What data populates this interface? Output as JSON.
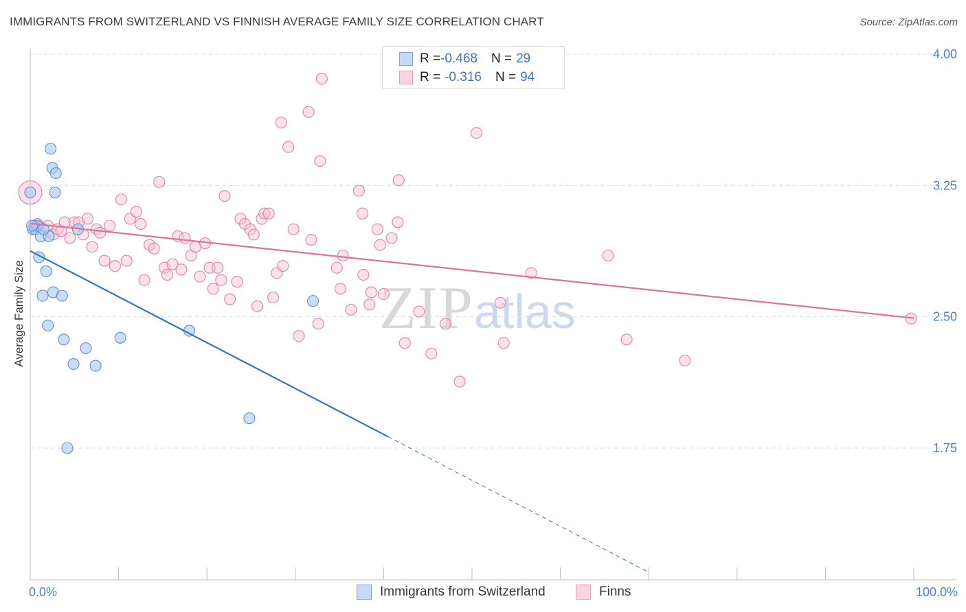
{
  "header": {
    "title": "IMMIGRANTS FROM SWITZERLAND VS FINNISH AVERAGE FAMILY SIZE CORRELATION CHART",
    "source": "Source: ZipAtlas.com"
  },
  "watermark": {
    "zip": "ZIP",
    "atlas": "atlas"
  },
  "legend": {
    "rows": [
      {
        "r_label": "R = ",
        "r_value": "-0.468",
        "n_label": "N = ",
        "n_value": "29"
      },
      {
        "r_label": "R = ",
        "r_value": "-0.316",
        "n_label": "N = ",
        "n_value": "94"
      }
    ]
  },
  "colors": {
    "blue_fill": "#aac8f2",
    "blue_stroke": "#5b8fd8",
    "blue_line": "#2f74d0",
    "pink_fill": "#f7c2d3",
    "pink_stroke": "#ea7fa4",
    "pink_line": "#e2709b",
    "axis_text": "#4a7fd0",
    "grid": "#dddddd"
  },
  "chart_data": {
    "type": "scatter",
    "title": "IMMIGRANTS FROM SWITZERLAND VS FINNISH AVERAGE FAMILY SIZE CORRELATION CHART",
    "xlabel": "",
    "ylabel": "Average Family Size",
    "xlim": [
      0,
      100
    ],
    "ylim": [
      1.0,
      4.05
    ],
    "x_tick_labels": [
      {
        "value": 0,
        "label": "0.0%"
      },
      {
        "value": 100,
        "label": "100.0%"
      }
    ],
    "y_ticks": [
      {
        "value": 4.0,
        "label": "4.00"
      },
      {
        "value": 3.25,
        "label": "3.25"
      },
      {
        "value": 2.5,
        "label": "2.50"
      },
      {
        "value": 1.75,
        "label": "1.75"
      }
    ],
    "grid": "horizontal dashed",
    "legend_position": "top-center",
    "series": [
      {
        "name": "Immigrants from Switzerland",
        "color": "#5b8fd8",
        "points": [
          [
            0.0,
            3.21
          ],
          [
            0.3,
            3.0
          ],
          [
            0.5,
            3.02
          ],
          [
            0.6,
            3.0
          ],
          [
            0.8,
            3.02
          ],
          [
            1.2,
            2.96
          ],
          [
            1.0,
            2.84
          ],
          [
            1.4,
            2.62
          ],
          [
            1.8,
            2.76
          ],
          [
            2.0,
            2.45
          ],
          [
            2.1,
            2.96
          ],
          [
            2.3,
            3.46
          ],
          [
            2.5,
            3.35
          ],
          [
            2.6,
            2.64
          ],
          [
            2.8,
            3.21
          ],
          [
            2.9,
            3.32
          ],
          [
            3.6,
            2.62
          ],
          [
            3.8,
            2.37
          ],
          [
            4.9,
            2.23
          ],
          [
            6.3,
            2.32
          ],
          [
            7.4,
            2.22
          ],
          [
            4.2,
            1.75
          ],
          [
            10.2,
            2.38
          ],
          [
            18.0,
            2.42
          ],
          [
            24.8,
            1.92
          ],
          [
            5.4,
            3.0
          ],
          [
            32.0,
            2.59
          ],
          [
            0.2,
            3.02
          ],
          [
            1.5,
            3.0
          ]
        ],
        "trend": {
          "x_start": 0.0,
          "y_start": 2.876,
          "x_solid_end": 40.5,
          "y_solid_end": 1.815,
          "x_dash_end": 70.0,
          "y_dash_end": 1.04
        }
      },
      {
        "name": "Finns",
        "color": "#ea7fa4",
        "points": [
          [
            0.0,
            3.21
          ],
          [
            0.8,
            3.03
          ],
          [
            1.0,
            3.02
          ],
          [
            1.5,
            3.0
          ],
          [
            2.0,
            3.02
          ],
          [
            2.6,
            2.97
          ],
          [
            3.1,
            3.0
          ],
          [
            3.5,
            2.99
          ],
          [
            3.9,
            3.04
          ],
          [
            4.5,
            2.95
          ],
          [
            5.0,
            3.04
          ],
          [
            5.5,
            3.04
          ],
          [
            6.0,
            2.97
          ],
          [
            6.5,
            3.06
          ],
          [
            7.0,
            2.9
          ],
          [
            7.5,
            3.0
          ],
          [
            7.9,
            2.98
          ],
          [
            8.4,
            2.82
          ],
          [
            9.0,
            3.02
          ],
          [
            9.6,
            2.79
          ],
          [
            10.3,
            3.17
          ],
          [
            10.9,
            2.82
          ],
          [
            11.3,
            3.06
          ],
          [
            12.0,
            3.1
          ],
          [
            12.5,
            3.03
          ],
          [
            12.9,
            2.71
          ],
          [
            13.5,
            2.91
          ],
          [
            14.0,
            2.89
          ],
          [
            14.6,
            3.27
          ],
          [
            15.2,
            2.78
          ],
          [
            15.5,
            2.74
          ],
          [
            16.1,
            2.8
          ],
          [
            16.7,
            2.96
          ],
          [
            17.1,
            2.77
          ],
          [
            17.5,
            2.95
          ],
          [
            18.2,
            2.85
          ],
          [
            18.7,
            2.9
          ],
          [
            19.2,
            2.73
          ],
          [
            19.8,
            2.92
          ],
          [
            20.3,
            2.78
          ],
          [
            20.7,
            2.66
          ],
          [
            21.2,
            2.78
          ],
          [
            21.6,
            2.71
          ],
          [
            22.0,
            3.19
          ],
          [
            22.6,
            2.6
          ],
          [
            23.4,
            2.7
          ],
          [
            23.8,
            3.06
          ],
          [
            24.3,
            3.03
          ],
          [
            24.9,
            3.0
          ],
          [
            25.3,
            2.97
          ],
          [
            25.7,
            2.56
          ],
          [
            26.2,
            3.06
          ],
          [
            26.5,
            3.09
          ],
          [
            27.0,
            3.09
          ],
          [
            27.5,
            2.61
          ],
          [
            27.9,
            2.75
          ],
          [
            28.6,
            2.79
          ],
          [
            28.4,
            3.61
          ],
          [
            29.2,
            3.47
          ],
          [
            29.8,
            3.0
          ],
          [
            30.4,
            2.39
          ],
          [
            31.5,
            3.67
          ],
          [
            31.8,
            2.94
          ],
          [
            32.6,
            2.46
          ],
          [
            32.8,
            3.39
          ],
          [
            33.0,
            3.86
          ],
          [
            34.7,
            2.78
          ],
          [
            35.1,
            2.66
          ],
          [
            35.4,
            2.85
          ],
          [
            36.3,
            2.54
          ],
          [
            37.2,
            3.22
          ],
          [
            37.6,
            3.09
          ],
          [
            37.7,
            2.74
          ],
          [
            38.4,
            2.57
          ],
          [
            38.6,
            2.64
          ],
          [
            39.3,
            3.0
          ],
          [
            39.6,
            2.91
          ],
          [
            40.0,
            2.63
          ],
          [
            40.9,
            2.95
          ],
          [
            41.6,
            3.04
          ],
          [
            41.7,
            3.28
          ],
          [
            42.4,
            2.35
          ],
          [
            44.0,
            2.53
          ],
          [
            45.4,
            2.29
          ],
          [
            47.0,
            2.46
          ],
          [
            48.6,
            2.13
          ],
          [
            50.5,
            3.55
          ],
          [
            53.2,
            2.58
          ],
          [
            53.6,
            2.35
          ],
          [
            56.7,
            2.75
          ],
          [
            65.4,
            2.85
          ],
          [
            67.5,
            2.37
          ],
          [
            74.1,
            2.25
          ],
          [
            99.7,
            2.49
          ]
        ],
        "trend": {
          "x_start": 0.0,
          "y_start": 3.033,
          "x_end": 100.0,
          "y_end": 2.492
        }
      }
    ]
  }
}
